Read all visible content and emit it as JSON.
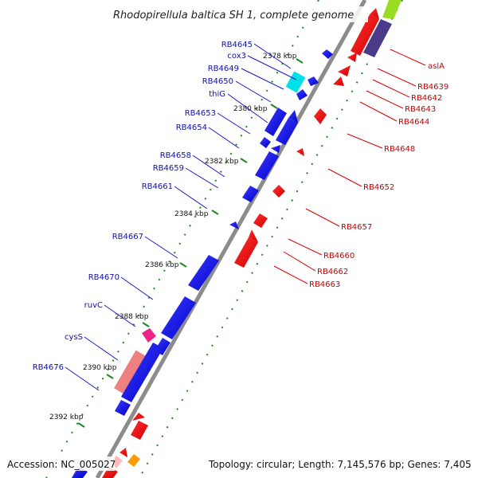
{
  "title": "Rhodopirellula baltica SH 1, complete genome",
  "footer": {
    "accession": "Accession: NC_005027",
    "topology": "Topology: circular; Length: 7,145,576 bp; Genes: 7,405"
  },
  "colors": {
    "backbone": "#8c8c8c",
    "forward_gene": "#0000ee",
    "reverse_gene": "#ee0000",
    "gc_dots": "#1a8a1a",
    "label_left": "#1010aa",
    "label_right": "#cc0000"
  },
  "ticks": [
    {
      "label": "2378 kbp"
    },
    {
      "label": "2380 kbp"
    },
    {
      "label": "2382 kbp"
    },
    {
      "label": "2384 kbp"
    },
    {
      "label": "2386 kbp"
    },
    {
      "label": "2388 kbp"
    },
    {
      "label": "2390 kbp"
    },
    {
      "label": "2392 kbp"
    }
  ],
  "left_labels": [
    {
      "text": "RB4645"
    },
    {
      "text": "cox3"
    },
    {
      "text": "RB4649"
    },
    {
      "text": "RB4650"
    },
    {
      "text": "thiG"
    },
    {
      "text": "RB4653"
    },
    {
      "text": "RB4654"
    },
    {
      "text": "RB4658"
    },
    {
      "text": "RB4659"
    },
    {
      "text": "RB4661"
    },
    {
      "text": "RB4667"
    },
    {
      "text": "RB4670"
    },
    {
      "text": "ruvC"
    },
    {
      "text": "cysS"
    },
    {
      "text": "RB4676"
    }
  ],
  "right_labels": [
    {
      "text": "aslA"
    },
    {
      "text": "RB4639"
    },
    {
      "text": "RB4642"
    },
    {
      "text": "RB4643"
    },
    {
      "text": "RB4644"
    },
    {
      "text": "RB4648"
    },
    {
      "text": "RB4652"
    },
    {
      "text": "RB4657"
    },
    {
      "text": "RB4660"
    },
    {
      "text": "RB4662"
    },
    {
      "text": "RB4663"
    }
  ]
}
